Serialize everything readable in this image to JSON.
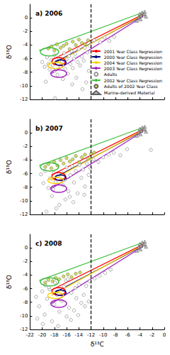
{
  "chart_data": [
    {
      "type": "scatter",
      "title": "a) 2006",
      "ylabel": "δ¹⁸O",
      "xlim": [
        -22,
        0
      ],
      "ylim": [
        -12,
        2
      ],
      "xticks": [
        -22,
        -20,
        -18,
        -16,
        -14,
        -12,
        -10,
        -8,
        -6,
        -4,
        -2,
        0
      ],
      "yticks": [
        -12,
        -10,
        -8,
        -6,
        -4,
        -2,
        0
      ],
      "grid": false,
      "tick_labels": "y",
      "legend": "lower right",
      "vline": -12,
      "series": [
        {
          "name": "2001 Year Class Regression",
          "type": "line",
          "marker": "none",
          "color": "#ff0000",
          "x": [
            -18.5,
            -3.5
          ],
          "values": [
            -6.2,
            0.5
          ],
          "ellipse": {
            "x": -17.3,
            "y": -6.4,
            "rx": 1.1,
            "ry": 0.55
          }
        },
        {
          "name": "2000 Year Class Regression",
          "type": "line",
          "marker": "none",
          "color": "#000080",
          "x": [
            -18,
            -3.5
          ],
          "values": [
            -6.6,
            0.3
          ],
          "ellipse": {
            "x": -17.0,
            "y": -6.6,
            "rx": 0.9,
            "ry": 0.4
          }
        },
        {
          "name": "2004 Year Class Regression",
          "type": "line",
          "marker": "none",
          "color": "#ffd200",
          "x": [
            -18.5,
            -3.5
          ],
          "values": [
            -7,
            0.4
          ],
          "ellipse": {
            "x": -17.8,
            "y": -7.0,
            "rx": 1.3,
            "ry": 0.45
          }
        },
        {
          "name": "2003 Year Class Regression",
          "type": "line",
          "marker": "none",
          "color": "#a020c0",
          "x": [
            -18.5,
            -3.5
          ],
          "values": [
            -8.2,
            0.2
          ],
          "ellipse": {
            "x": -17.3,
            "y": -8.2,
            "rx": 1.3,
            "ry": 0.55
          }
        },
        {
          "name": "Adults",
          "type": "scatter",
          "marker": "open_circle",
          "color": "#808080",
          "x": [
            -20,
            -19.6,
            -19.2,
            -19,
            -18.8,
            -18.5,
            -18.3,
            -18,
            -18,
            -17.8,
            -17.5,
            -17.3,
            -17,
            -16.8,
            -16.6,
            -16.4,
            -16.2,
            -16,
            -15.8,
            -15.6,
            -15.4,
            -15.2,
            -15,
            -14.8,
            -14.6,
            -14.4,
            -14.2,
            -14,
            -13.8,
            -13.5,
            -13.2,
            -13,
            -12.8,
            -12.6,
            -12.4,
            -12.2,
            -17.9,
            -19.4,
            -11.5,
            -10.5,
            -9.8,
            -9,
            -8.2,
            -13.4,
            -15.1
          ],
          "values": [
            -6.5,
            -7.2,
            -5.8,
            -6.8,
            -7.6,
            -6.2,
            -7,
            -5.5,
            -7.8,
            -6.6,
            -8.4,
            -5.9,
            -7.2,
            -6.4,
            -9,
            -5.2,
            -7.5,
            -6.1,
            -8.2,
            -5.6,
            -6.8,
            -4.9,
            -7.4,
            -6,
            -5.3,
            -8.8,
            -6.5,
            -4.6,
            -7,
            -5.7,
            -6.3,
            -4.4,
            -9.5,
            -5.1,
            -7.8,
            -4.1,
            -11.8,
            -9.4,
            -3.3,
            -3.6,
            -2.9,
            -3.4,
            -2.8,
            -10.5,
            -9.8
          ]
        },
        {
          "name": "2002 Year Class Regression",
          "type": "line",
          "marker": "none",
          "color": "#40c040",
          "x": [
            -20.5,
            -3.5
          ],
          "values": [
            -4.8,
            0.8
          ],
          "ellipse": {
            "x": -18.8,
            "y": -5.0,
            "rx": 1.5,
            "ry": 0.6
          }
        },
        {
          "name": "Adults of 2002 Year Class",
          "type": "scatter",
          "marker": "circle",
          "color": "#c8d43c",
          "x": [
            -19,
            -18.5,
            -18,
            -17.6,
            -17,
            -16.5,
            -16,
            -15.5,
            -15,
            -14.5,
            -14,
            -13.5,
            -13,
            -12.5
          ],
          "values": [
            -4.5,
            -4.2,
            -4.8,
            -3.9,
            -4.4,
            -4.1,
            -3.8,
            -4.6,
            -3.5,
            -4,
            -3.2,
            -3.7,
            -3.9,
            -3.3
          ]
        },
        {
          "name": "Marine-derived Material",
          "type": "scatter",
          "marker": "triangle",
          "color": "#b0b0b0",
          "x": [
            -4.5,
            -4.2,
            -4,
            -3.8,
            -3.6,
            -3.4,
            -3.2,
            -3,
            -3.9,
            -3.3
          ],
          "values": [
            -0.4,
            0.1,
            0.6,
            0.3,
            0.8,
            0.5,
            0.9,
            0.2,
            -0.2,
            0.6
          ]
        }
      ]
    },
    {
      "type": "scatter",
      "title": "b) 2007",
      "ylabel": "δ¹⁸O",
      "xlim": [
        -22,
        0
      ],
      "ylim": [
        -12,
        2
      ],
      "xticks": [
        -22,
        -20,
        -18,
        -16,
        -14,
        -12,
        -10,
        -8,
        -6,
        -4,
        -2,
        0
      ],
      "yticks": [
        -12,
        -10,
        -8,
        -6,
        -4,
        -2,
        0
      ],
      "grid": false,
      "tick_labels": "y",
      "legend": false,
      "vline": -12,
      "series": [
        {
          "name": "2001 Year Class Regression",
          "type": "line",
          "marker": "none",
          "color": "#ff0000",
          "x": [
            -18.5,
            -3.5
          ],
          "values": [
            -6.2,
            0.5
          ],
          "ellipse": {
            "x": -17.3,
            "y": -6.4,
            "rx": 1.1,
            "ry": 0.55
          }
        },
        {
          "name": "2000 Year Class Regression",
          "type": "line",
          "marker": "none",
          "color": "#000080",
          "x": [
            -18,
            -3.5
          ],
          "values": [
            -6.6,
            0.3
          ],
          "ellipse": {
            "x": -17.0,
            "y": -6.6,
            "rx": 0.9,
            "ry": 0.4
          }
        },
        {
          "name": "2004 Year Class Regression",
          "type": "line",
          "marker": "none",
          "color": "#ffd200",
          "x": [
            -18.5,
            -3.5
          ],
          "values": [
            -7,
            0.4
          ],
          "ellipse": {
            "x": -17.8,
            "y": -7.0,
            "rx": 1.3,
            "ry": 0.45
          }
        },
        {
          "name": "2003 Year Class Regression",
          "type": "line",
          "marker": "none",
          "color": "#a020c0",
          "x": [
            -18.5,
            -3.5
          ],
          "values": [
            -8.2,
            0.2
          ],
          "ellipse": {
            "x": -17.3,
            "y": -8.2,
            "rx": 1.3,
            "ry": 0.55
          }
        },
        {
          "name": "Adults",
          "type": "scatter",
          "marker": "open_circle",
          "color": "#808080",
          "x": [
            -20.2,
            -19.8,
            -19.5,
            -19,
            -18.7,
            -18.4,
            -18.1,
            -17.8,
            -17.5,
            -17.2,
            -16.9,
            -16.6,
            -16.3,
            -16,
            -15.7,
            -15.4,
            -15.1,
            -14.8,
            -14.5,
            -14.2,
            -13.9,
            -13.6,
            -13.3,
            -13,
            -12.7,
            -12.4,
            -12.1,
            -19.3,
            -17.7,
            -16.2,
            -14.9,
            -13.1,
            -11.6,
            -10.8,
            -10,
            -9.1,
            -8.3,
            -7.2,
            -6.1,
            -2.2,
            -18.2,
            -15.5
          ],
          "values": [
            -6.1,
            -7.4,
            -5.6,
            -8.1,
            -6.7,
            -9.3,
            -5.9,
            -7.2,
            -6.4,
            -10.6,
            -5.8,
            -7.7,
            -6.9,
            -5.1,
            -8.6,
            -6.2,
            -4.9,
            -7.3,
            -5.6,
            -8.9,
            -4.7,
            -6.6,
            -5.4,
            -7.9,
            -4.5,
            -6.2,
            -5.2,
            -11.6,
            -11.1,
            -9.8,
            -10.2,
            -9.1,
            -3.9,
            -4.3,
            -3.6,
            -3.2,
            -2.9,
            -3.3,
            -2.4,
            -2.5,
            -8.3,
            -9.4
          ]
        },
        {
          "name": "2002 Year Class Regression",
          "type": "line",
          "marker": "none",
          "color": "#40c040",
          "x": [
            -20.5,
            -3.5
          ],
          "values": [
            -4.8,
            0.8
          ],
          "ellipse": {
            "x": -18.8,
            "y": -5.0,
            "rx": 1.5,
            "ry": 0.6
          }
        },
        {
          "name": "Adults of 2002 Year Class",
          "type": "scatter",
          "marker": "circle",
          "color": "#c8d43c",
          "x": [
            -19.5,
            -19,
            -18.5,
            -18,
            -17.5,
            -17,
            -16.5,
            -16,
            -15.5,
            -15,
            -14.5,
            -14,
            -13.5,
            -13,
            -12.5,
            -12,
            -11.5
          ],
          "values": [
            -5,
            -4.6,
            -5.2,
            -4.3,
            -4.8,
            -4,
            -4.5,
            -3.7,
            -4.2,
            -3.9,
            -3.4,
            -4.3,
            -3.6,
            -3.2,
            -3.8,
            -3.1,
            -2.9
          ]
        },
        {
          "name": "Marine-derived Material",
          "type": "scatter",
          "marker": "triangle",
          "color": "#b0b0b0",
          "x": [
            -4.5,
            -4.2,
            -4,
            -3.8,
            -3.6,
            -3.4,
            -3.2,
            -3,
            -3.9,
            -3.3
          ],
          "values": [
            -0.4,
            0.1,
            0.6,
            0.3,
            0.8,
            0.5,
            0.9,
            0.2,
            -0.2,
            0.6
          ]
        }
      ]
    },
    {
      "type": "scatter",
      "title": "c) 2008",
      "ylabel": "δ¹⁸O",
      "xlabel": "δ¹³C",
      "xlim": [
        -22,
        0
      ],
      "ylim": [
        -12,
        2
      ],
      "xticks": [
        -22,
        -20,
        -18,
        -16,
        -14,
        -12,
        -10,
        -8,
        -6,
        -4,
        -2,
        0
      ],
      "yticks": [
        -12,
        -10,
        -8,
        -6,
        -4,
        -2,
        0
      ],
      "grid": false,
      "legend": false,
      "vline": -12,
      "series": [
        {
          "name": "2001 Year Class Regression",
          "type": "line",
          "marker": "none",
          "color": "#ff0000",
          "x": [
            -18.5,
            -3.5
          ],
          "values": [
            -6.2,
            0.5
          ],
          "ellipse": {
            "x": -17.3,
            "y": -6.4,
            "rx": 1.1,
            "ry": 0.55
          }
        },
        {
          "name": "2000 Year Class Regression",
          "type": "line",
          "marker": "none",
          "color": "#000080",
          "x": [
            -18,
            -3.5
          ],
          "values": [
            -6.6,
            0.3
          ],
          "ellipse": {
            "x": -17.0,
            "y": -6.6,
            "rx": 0.9,
            "ry": 0.4
          }
        },
        {
          "name": "2004 Year Class Regression",
          "type": "line",
          "marker": "none",
          "color": "#ffd200",
          "x": [
            -18.5,
            -3.5
          ],
          "values": [
            -7,
            0.4
          ],
          "ellipse": {
            "x": -17.8,
            "y": -7.0,
            "rx": 1.3,
            "ry": 0.45
          }
        },
        {
          "name": "2003 Year Class Regression",
          "type": "line",
          "marker": "none",
          "color": "#a020c0",
          "x": [
            -18.5,
            -3.5
          ],
          "values": [
            -8.2,
            0.2
          ],
          "ellipse": {
            "x": -17.3,
            "y": -8.2,
            "rx": 1.3,
            "ry": 0.55
          }
        },
        {
          "name": "Adults",
          "type": "scatter",
          "marker": "open_circle",
          "color": "#808080",
          "x": [
            -21,
            -20.5,
            -20,
            -19.6,
            -19.2,
            -18.8,
            -18.4,
            -18,
            -17.6,
            -17.2,
            -16.8,
            -16.4,
            -16,
            -15.6,
            -15.2,
            -14.8,
            -14.4,
            -14,
            -13.6,
            -13.2,
            -12.8,
            -12.4,
            -20.8,
            -19.9,
            -18.9,
            -17.4,
            -16.1,
            -15.3,
            -14.1,
            -13,
            -11.4,
            -10.6,
            -9.7,
            -8.8,
            -19.5,
            -17.9,
            -16.6,
            -15.8,
            -14.6,
            -12.2
          ],
          "values": [
            -7.2,
            -8.6,
            -6.4,
            -9.8,
            -7.5,
            -6.1,
            -10.8,
            -8.3,
            -6.9,
            -9.4,
            -7.8,
            -5.7,
            -10.1,
            -8.8,
            -6.6,
            -9.2,
            -7.4,
            -5.4,
            -8.1,
            -6.9,
            -5.6,
            -7.9,
            -10.4,
            -11.2,
            -5.8,
            -11.5,
            -4.8,
            -10.6,
            -9.9,
            -8.6,
            -4.5,
            -4.1,
            -3.7,
            -3.2,
            -5.5,
            -5.1,
            -6.2,
            -4.6,
            -5.9,
            -4.9
          ]
        },
        {
          "name": "2002 Year Class Regression",
          "type": "line",
          "marker": "none",
          "color": "#40c040",
          "x": [
            -20.5,
            -3.5
          ],
          "values": [
            -4.8,
            0.8
          ],
          "ellipse": {
            "x": -18.8,
            "y": -5.0,
            "rx": 1.5,
            "ry": 0.6
          }
        },
        {
          "name": "Adults of 2002 Year Class",
          "type": "scatter",
          "marker": "circle",
          "color": "#c8d43c",
          "x": [
            -19.5,
            -19,
            -18.3,
            -17.8,
            -17.2,
            -16.5,
            -15.8,
            -15.2,
            -14.5,
            -13.8
          ],
          "values": [
            -5.1,
            -4.7,
            -4.9,
            -4.4,
            -4.6,
            -4.2,
            -3.9,
            -4.3,
            -3.8,
            -3.6
          ]
        },
        {
          "name": "Marine-derived Material",
          "type": "scatter",
          "marker": "triangle",
          "color": "#b0b0b0",
          "x": [
            -4.5,
            -4.2,
            -4,
            -3.8,
            -3.6,
            -3.4,
            -3.2,
            -3,
            -3.9,
            -3.3
          ],
          "values": [
            -0.4,
            0.1,
            0.6,
            0.3,
            0.8,
            0.5,
            0.9,
            0.2,
            -0.2,
            0.6
          ]
        }
      ]
    }
  ]
}
